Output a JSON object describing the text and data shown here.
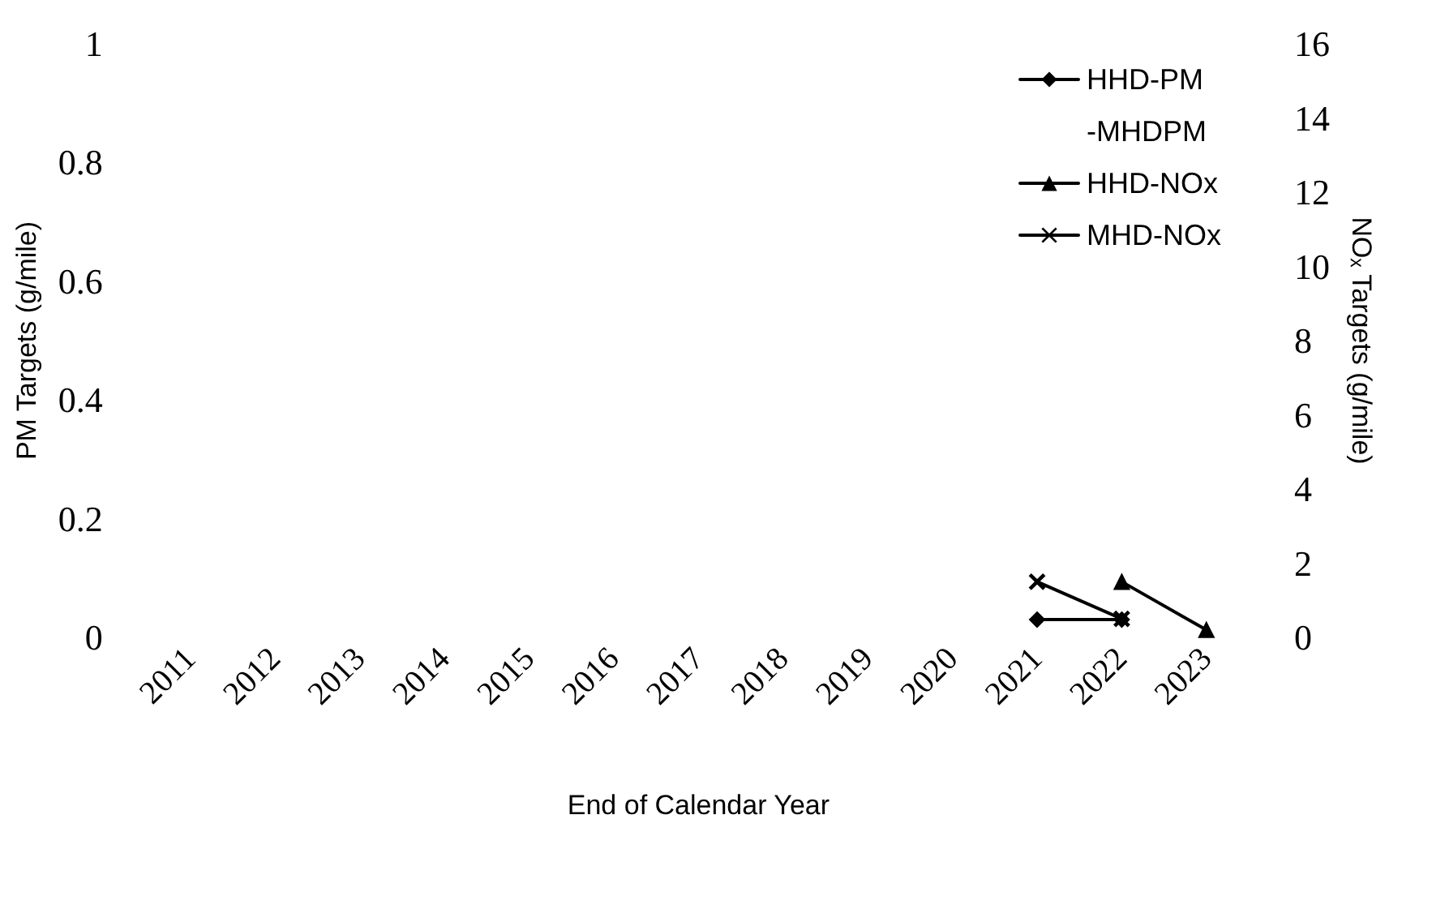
{
  "chart_data": {
    "type": "line",
    "xlabel": "End of Calendar Year",
    "ylabel": "PM Targets (g/mile)",
    "y2label": "NOₓ Targets (g/mile)",
    "categories": [
      "2011",
      "2012",
      "2013",
      "2014",
      "2015",
      "2016",
      "2017",
      "2018",
      "2019",
      "2020",
      "2021",
      "2022",
      "2023"
    ],
    "ylim": [
      0,
      1
    ],
    "yticks": [
      0,
      0.2,
      0.4,
      0.6,
      0.8,
      1
    ],
    "y2lim": [
      0,
      16
    ],
    "y2ticks": [
      0,
      2,
      4,
      6,
      8,
      10,
      12,
      14,
      16
    ],
    "legend": "top right",
    "grid": false,
    "series": [
      {
        "name": "HHD-PM",
        "color": "#000000",
        "marker": "diamond",
        "values": [
          null,
          null,
          null,
          null,
          null,
          null,
          null,
          null,
          null,
          null,
          0.03,
          0.03,
          null
        ]
      },
      {
        "name": "-MHDPM",
        "color": "#000000",
        "marker": "none",
        "values": [
          null,
          null,
          null,
          null,
          null,
          null,
          null,
          null,
          null,
          null,
          null,
          null,
          null
        ]
      },
      {
        "name": "HHD-NOx",
        "color": "#000000",
        "marker": "triangle",
        "axis": "y2",
        "values": [
          null,
          null,
          null,
          null,
          null,
          null,
          null,
          null,
          null,
          null,
          null,
          1.5,
          0.2
        ]
      },
      {
        "name": "MHD-NOx",
        "color": "#000000",
        "marker": "cross",
        "axis": "y2",
        "values": [
          null,
          null,
          null,
          null,
          null,
          null,
          null,
          null,
          null,
          null,
          1.5,
          0.5,
          null
        ]
      }
    ]
  }
}
